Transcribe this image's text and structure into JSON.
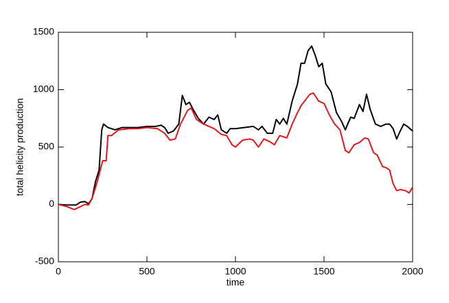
{
  "chart_data": {
    "type": "line",
    "xlabel": "time",
    "ylabel": "total helicity production",
    "xlim": [
      0,
      2000
    ],
    "xticks": [
      0,
      500,
      1000,
      1500,
      2000
    ],
    "ylim": [
      -500,
      1500
    ],
    "yticks": [
      -500,
      0,
      500,
      1000,
      1500
    ],
    "series": [
      {
        "color": "#000000",
        "x": [
          0,
          50,
          100,
          125,
          150,
          170,
          190,
          210,
          230,
          245,
          255,
          280,
          320,
          360,
          400,
          450,
          500,
          550,
          580,
          600,
          620,
          650,
          680,
          700,
          720,
          740,
          760,
          790,
          820,
          850,
          880,
          900,
          920,
          950,
          970,
          1000,
          1050,
          1100,
          1130,
          1150,
          1180,
          1210,
          1230,
          1250,
          1270,
          1290,
          1320,
          1350,
          1370,
          1390,
          1410,
          1430,
          1450,
          1470,
          1490,
          1510,
          1540,
          1570,
          1600,
          1620,
          1650,
          1670,
          1700,
          1720,
          1740,
          1760,
          1790,
          1820,
          1850,
          1870,
          1890,
          1910,
          1930,
          1950,
          1970,
          2000
        ],
        "values": [
          0,
          -5,
          -5,
          20,
          25,
          5,
          50,
          200,
          300,
          650,
          700,
          670,
          650,
          670,
          670,
          670,
          680,
          680,
          690,
          670,
          620,
          640,
          700,
          950,
          870,
          890,
          830,
          750,
          700,
          760,
          740,
          780,
          650,
          620,
          660,
          660,
          670,
          680,
          650,
          680,
          620,
          620,
          740,
          700,
          750,
          700,
          900,
          1050,
          1230,
          1230,
          1340,
          1380,
          1300,
          1200,
          1230,
          1050,
          980,
          800,
          720,
          650,
          760,
          750,
          870,
          810,
          960,
          830,
          700,
          680,
          700,
          700,
          660,
          570,
          640,
          700,
          680,
          640
        ]
      },
      {
        "color": "#e8141b",
        "x": [
          0,
          50,
          90,
          110,
          150,
          170,
          190,
          220,
          250,
          270,
          280,
          300,
          340,
          400,
          450,
          500,
          560,
          600,
          630,
          660,
          690,
          730,
          750,
          780,
          820,
          850,
          880,
          920,
          950,
          980,
          1000,
          1040,
          1080,
          1100,
          1130,
          1160,
          1190,
          1220,
          1250,
          1290,
          1320,
          1350,
          1370,
          1390,
          1420,
          1440,
          1470,
          1500,
          1530,
          1560,
          1590,
          1620,
          1640,
          1670,
          1700,
          1730,
          1750,
          1780,
          1800,
          1830,
          1850,
          1870,
          1890,
          1910,
          1930,
          1960,
          1980,
          2000
        ],
        "values": [
          0,
          -20,
          -45,
          -30,
          0,
          -5,
          50,
          200,
          380,
          380,
          600,
          600,
          650,
          660,
          660,
          670,
          660,
          620,
          560,
          570,
          700,
          820,
          840,
          740,
          700,
          680,
          660,
          610,
          600,
          520,
          500,
          560,
          570,
          560,
          500,
          570,
          550,
          520,
          600,
          580,
          700,
          800,
          860,
          900,
          960,
          970,
          900,
          880,
          780,
          700,
          650,
          470,
          450,
          520,
          540,
          580,
          570,
          450,
          430,
          330,
          320,
          300,
          180,
          120,
          130,
          120,
          100,
          150
        ]
      }
    ]
  }
}
